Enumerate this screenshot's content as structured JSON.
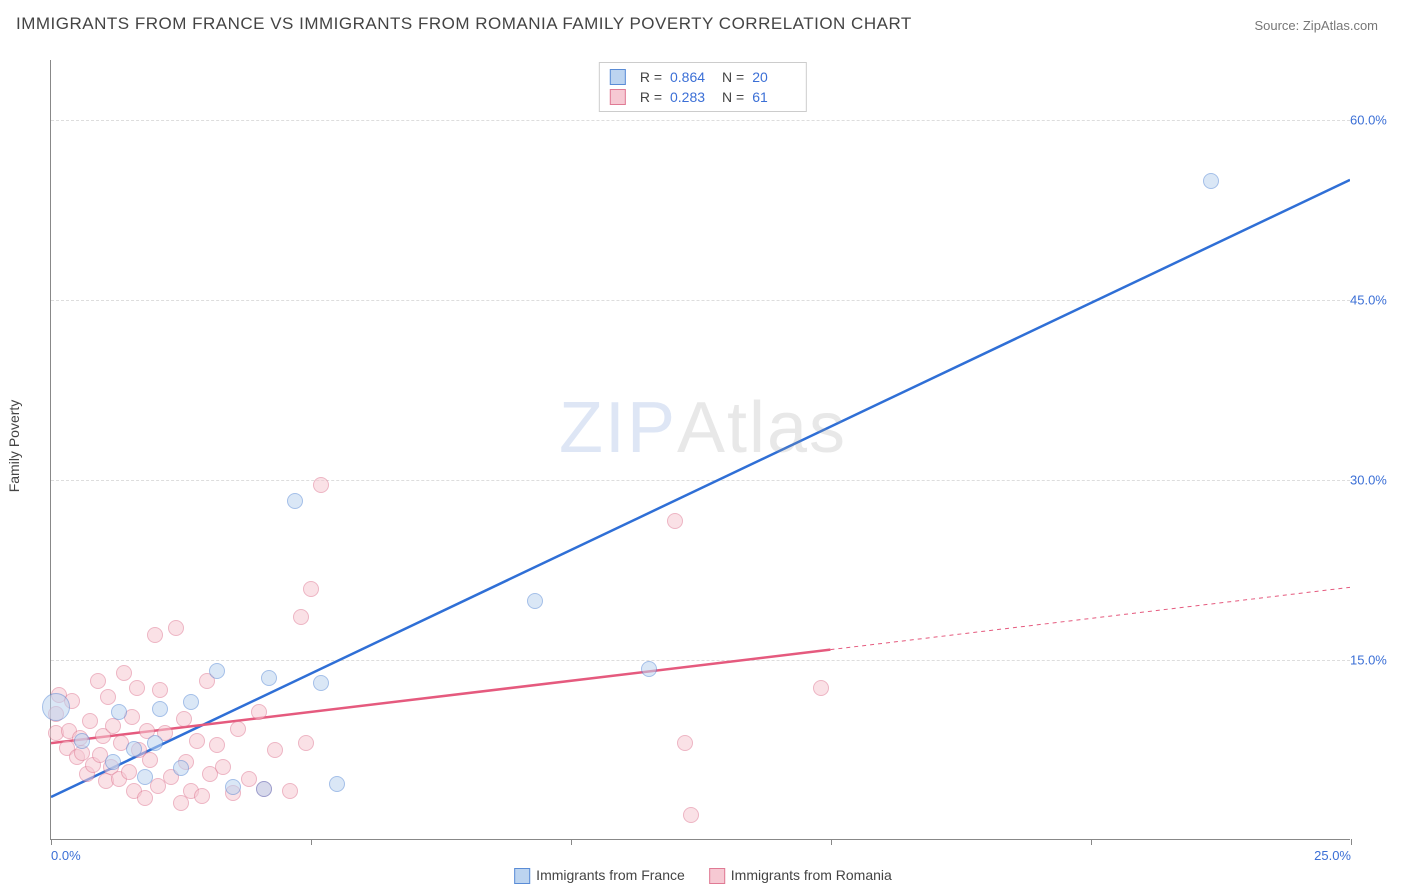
{
  "title": "IMMIGRANTS FROM FRANCE VS IMMIGRANTS FROM ROMANIA FAMILY POVERTY CORRELATION CHART",
  "source_label": "Source: ZipAtlas.com",
  "watermark": {
    "zip": "ZIP",
    "atlas": "Atlas"
  },
  "ylabel": "Family Poverty",
  "chart": {
    "type": "scatter",
    "xlim": [
      0,
      25
    ],
    "ylim": [
      0,
      65
    ],
    "xtick_positions": [
      0,
      5,
      10,
      15,
      20,
      25
    ],
    "xtick_labels": {
      "first": "0.0%",
      "last": "25.0%"
    },
    "ytick_positions": [
      15,
      30,
      45,
      60
    ],
    "ytick_labels": [
      "15.0%",
      "30.0%",
      "45.0%",
      "60.0%"
    ],
    "grid_color": "#dddddd",
    "axis_color": "#888888",
    "background_color": "#ffffff",
    "marker_radius": 8,
    "marker_opacity": 0.55,
    "series": [
      {
        "name": "Immigrants from France",
        "color_fill": "#bcd4f0",
        "color_stroke": "#5a8cd6",
        "line_color": "#2f6fd6",
        "line_width": 2.5,
        "R": "0.864",
        "N": "20",
        "trend": {
          "x1": 0,
          "y1": 3.5,
          "x2": 25,
          "y2": 55,
          "dashed_from_x": null
        },
        "points": [
          {
            "x": 0.1,
            "y": 11.0,
            "r": 14
          },
          {
            "x": 0.6,
            "y": 8.2
          },
          {
            "x": 1.2,
            "y": 6.4
          },
          {
            "x": 1.3,
            "y": 10.6
          },
          {
            "x": 1.6,
            "y": 7.5
          },
          {
            "x": 1.8,
            "y": 5.2
          },
          {
            "x": 2.0,
            "y": 8.0
          },
          {
            "x": 2.1,
            "y": 10.8
          },
          {
            "x": 2.5,
            "y": 5.9
          },
          {
            "x": 2.7,
            "y": 11.4
          },
          {
            "x": 3.2,
            "y": 14.0
          },
          {
            "x": 3.5,
            "y": 4.3
          },
          {
            "x": 4.1,
            "y": 4.2
          },
          {
            "x": 4.2,
            "y": 13.4
          },
          {
            "x": 4.7,
            "y": 28.2
          },
          {
            "x": 5.2,
            "y": 13.0
          },
          {
            "x": 5.5,
            "y": 4.6
          },
          {
            "x": 9.3,
            "y": 19.8
          },
          {
            "x": 11.5,
            "y": 14.2
          },
          {
            "x": 22.3,
            "y": 54.8
          }
        ]
      },
      {
        "name": "Immigrants from Romania",
        "color_fill": "#f6c9d3",
        "color_stroke": "#e07a94",
        "line_color": "#e55a7e",
        "line_width": 2.5,
        "R": "0.283",
        "N": "61",
        "trend": {
          "x1": 0,
          "y1": 8.0,
          "x2": 25,
          "y2": 21.0,
          "dashed_from_x": 15
        },
        "points": [
          {
            "x": 0.1,
            "y": 10.4
          },
          {
            "x": 0.1,
            "y": 8.8
          },
          {
            "x": 0.15,
            "y": 12.0
          },
          {
            "x": 0.3,
            "y": 7.6
          },
          {
            "x": 0.35,
            "y": 9.0
          },
          {
            "x": 0.4,
            "y": 11.5
          },
          {
            "x": 0.5,
            "y": 6.8
          },
          {
            "x": 0.55,
            "y": 8.4
          },
          {
            "x": 0.6,
            "y": 7.2
          },
          {
            "x": 0.7,
            "y": 5.4
          },
          {
            "x": 0.75,
            "y": 9.8
          },
          {
            "x": 0.8,
            "y": 6.2
          },
          {
            "x": 0.9,
            "y": 13.2
          },
          {
            "x": 0.95,
            "y": 7.0
          },
          {
            "x": 1.0,
            "y": 8.6
          },
          {
            "x": 1.05,
            "y": 4.8
          },
          {
            "x": 1.1,
            "y": 11.8
          },
          {
            "x": 1.15,
            "y": 6.0
          },
          {
            "x": 1.2,
            "y": 9.4
          },
          {
            "x": 1.3,
            "y": 5.0
          },
          {
            "x": 1.35,
            "y": 8.0
          },
          {
            "x": 1.4,
            "y": 13.8
          },
          {
            "x": 1.5,
            "y": 5.6
          },
          {
            "x": 1.55,
            "y": 10.2
          },
          {
            "x": 1.6,
            "y": 4.0
          },
          {
            "x": 1.65,
            "y": 12.6
          },
          {
            "x": 1.7,
            "y": 7.4
          },
          {
            "x": 1.8,
            "y": 3.4
          },
          {
            "x": 1.85,
            "y": 9.0
          },
          {
            "x": 1.9,
            "y": 6.6
          },
          {
            "x": 2.0,
            "y": 17.0
          },
          {
            "x": 2.05,
            "y": 4.4
          },
          {
            "x": 2.1,
            "y": 12.4
          },
          {
            "x": 2.2,
            "y": 8.8
          },
          {
            "x": 2.3,
            "y": 5.2
          },
          {
            "x": 2.4,
            "y": 17.6
          },
          {
            "x": 2.5,
            "y": 3.0
          },
          {
            "x": 2.55,
            "y": 10.0
          },
          {
            "x": 2.6,
            "y": 6.4
          },
          {
            "x": 2.7,
            "y": 4.0
          },
          {
            "x": 2.8,
            "y": 8.2
          },
          {
            "x": 2.9,
            "y": 3.6
          },
          {
            "x": 3.0,
            "y": 13.2
          },
          {
            "x": 3.05,
            "y": 5.4
          },
          {
            "x": 3.2,
            "y": 7.8
          },
          {
            "x": 3.3,
            "y": 6.0
          },
          {
            "x": 3.5,
            "y": 3.8
          },
          {
            "x": 3.6,
            "y": 9.2
          },
          {
            "x": 3.8,
            "y": 5.0
          },
          {
            "x": 4.0,
            "y": 10.6
          },
          {
            "x": 4.1,
            "y": 4.2
          },
          {
            "x": 4.3,
            "y": 7.4
          },
          {
            "x": 4.6,
            "y": 4.0
          },
          {
            "x": 4.8,
            "y": 18.5
          },
          {
            "x": 4.9,
            "y": 8.0
          },
          {
            "x": 5.0,
            "y": 20.8
          },
          {
            "x": 5.2,
            "y": 29.5
          },
          {
            "x": 12.0,
            "y": 26.5
          },
          {
            "x": 12.2,
            "y": 8.0
          },
          {
            "x": 12.3,
            "y": 2.0
          },
          {
            "x": 14.8,
            "y": 12.6
          }
        ]
      }
    ]
  },
  "bottom_legend": [
    {
      "label": "Immigrants from France",
      "fill": "#bcd4f0",
      "stroke": "#5a8cd6"
    },
    {
      "label": "Immigrants from Romania",
      "fill": "#f6c9d3",
      "stroke": "#e07a94"
    }
  ],
  "top_legend_rows": [
    {
      "fill": "#bcd4f0",
      "stroke": "#5a8cd6",
      "R": "0.864",
      "N": "20"
    },
    {
      "fill": "#f6c9d3",
      "stroke": "#e07a94",
      "R": "0.283",
      "N": "61"
    }
  ]
}
